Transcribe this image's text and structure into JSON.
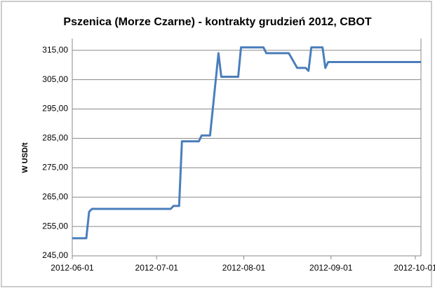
{
  "chart_data": {
    "type": "line",
    "title": "Pszenica (Morze Czarne) - kontrakty grudzień 2012, CBOT",
    "y_label": "W USD/t",
    "x": [
      "2012-06-01",
      "2012-06-06",
      "2012-06-07",
      "2012-06-08",
      "2012-07-06",
      "2012-07-07",
      "2012-07-09",
      "2012-07-10",
      "2012-07-16",
      "2012-07-17",
      "2012-07-20",
      "2012-07-23",
      "2012-07-24",
      "2012-07-30",
      "2012-07-31",
      "2012-08-08",
      "2012-08-09",
      "2012-08-17",
      "2012-08-20",
      "2012-08-23",
      "2012-08-24",
      "2012-08-25",
      "2012-08-29",
      "2012-08-30",
      "2012-08-31",
      "2012-10-03"
    ],
    "series": [
      {
        "name": "Pszenica",
        "color": "#4a7ebb",
        "values": [
          251,
          251,
          260,
          261,
          261,
          262,
          262,
          284,
          284,
          286,
          286,
          314,
          306,
          306,
          316,
          316,
          314,
          314,
          309,
          309,
          308,
          316,
          316,
          309,
          311,
          311
        ]
      }
    ],
    "xlim": [
      "2012-06-01",
      "2012-10-03"
    ],
    "xticks": [
      "2012-06-01",
      "2012-07-01",
      "2012-08-01",
      "2012-09-01",
      "2012-10-01"
    ],
    "ylim": [
      245,
      319
    ],
    "yticks": [
      {
        "value": 245,
        "label": "245,00"
      },
      {
        "value": 255,
        "label": "255,00"
      },
      {
        "value": 265,
        "label": "265,00"
      },
      {
        "value": 275,
        "label": "275,00"
      },
      {
        "value": 285,
        "label": "285,00"
      },
      {
        "value": 295,
        "label": "295,00"
      },
      {
        "value": 305,
        "label": "305,00"
      },
      {
        "value": 315,
        "label": "315,00"
      }
    ],
    "grid": true
  }
}
